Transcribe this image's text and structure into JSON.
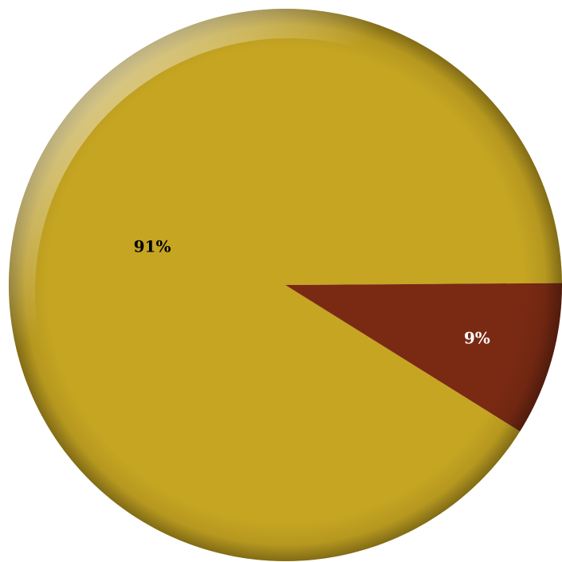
{
  "chart_data": {
    "type": "pie",
    "slices": [
      {
        "value": 91,
        "label": "91%",
        "color": "#c6a522",
        "label_color": "#000000"
      },
      {
        "value": 9,
        "label": "9%",
        "color": "#7a2a13",
        "label_color": "#ffffff"
      }
    ]
  }
}
